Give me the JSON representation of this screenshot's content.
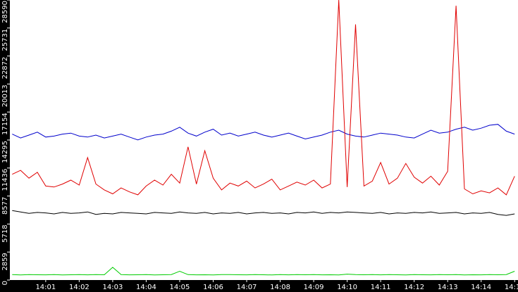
{
  "chart_data": {
    "type": "line",
    "x": [
      0,
      0.25,
      0.5,
      0.75,
      1,
      1.25,
      1.5,
      1.75,
      2,
      2.25,
      2.5,
      2.75,
      3,
      3.25,
      3.5,
      3.75,
      4,
      4.25,
      4.5,
      4.75,
      5,
      5.25,
      5.5,
      5.75,
      6,
      6.25,
      6.5,
      6.75,
      7,
      7.25,
      7.5,
      7.75,
      8,
      8.25,
      8.5,
      8.75,
      9,
      9.25,
      9.5,
      9.75,
      10,
      10.25,
      10.5,
      10.75,
      11,
      11.25,
      11.5,
      11.75,
      12,
      12.25,
      12.5,
      12.75,
      13,
      13.25,
      13.5,
      13.75,
      14,
      14.25,
      14.5,
      14.75,
      15
    ],
    "xlim": [
      -0.07,
      15.1
    ],
    "xticks": [
      {
        "value": 1,
        "label": "14:01"
      },
      {
        "value": 2,
        "label": "14:02"
      },
      {
        "value": 3,
        "label": "14:03"
      },
      {
        "value": 4,
        "label": "14:04"
      },
      {
        "value": 5,
        "label": "14:05"
      },
      {
        "value": 6,
        "label": "14:06"
      },
      {
        "value": 7,
        "label": "14:07"
      },
      {
        "value": 8,
        "label": "14:08"
      },
      {
        "value": 9,
        "label": "14:09"
      },
      {
        "value": 10,
        "label": "14:10"
      },
      {
        "value": 11,
        "label": "14:11"
      },
      {
        "value": 12,
        "label": "14:12"
      },
      {
        "value": 13,
        "label": "14:13"
      },
      {
        "value": 14,
        "label": "14:14"
      },
      {
        "value": 15,
        "label": "14:15"
      }
    ],
    "ylim": [
      0,
      28590
    ],
    "yticks": [
      0,
      2859,
      5718,
      8577,
      11436,
      14295,
      17154,
      20013,
      22872,
      25731,
      28590
    ],
    "series": [
      {
        "color": "#0000cc",
        "values": [
          14900,
          14500,
          14800,
          15100,
          14600,
          14700,
          14900,
          15000,
          14700,
          14600,
          14800,
          14500,
          14700,
          14900,
          14600,
          14300,
          14600,
          14800,
          14900,
          15200,
          15600,
          15000,
          14700,
          15100,
          15400,
          14800,
          15000,
          14700,
          14900,
          15100,
          14800,
          14600,
          14800,
          15000,
          14700,
          14400,
          14600,
          14800,
          15100,
          15300,
          14900,
          14700,
          14600,
          14800,
          15000,
          14900,
          14800,
          14600,
          14500,
          14900,
          15300,
          15000,
          15100,
          15400,
          15600,
          15300,
          15500,
          15800,
          15900,
          15200,
          14900
        ]
      },
      {
        "color": "#e00000",
        "values": [
          10800,
          11200,
          10400,
          11000,
          9600,
          9500,
          9800,
          10200,
          9700,
          12500,
          9800,
          9200,
          8800,
          9400,
          9000,
          8700,
          9600,
          10200,
          9700,
          10800,
          9900,
          13600,
          9800,
          13200,
          10400,
          9200,
          9900,
          9600,
          10100,
          9400,
          9800,
          10300,
          9200,
          9600,
          10000,
          9700,
          10200,
          9400,
          9800,
          28590,
          9500,
          26100,
          9600,
          10100,
          12000,
          9800,
          10400,
          11900,
          10500,
          9900,
          10600,
          9700,
          11100,
          28000,
          9300,
          8800,
          9100,
          8900,
          9400,
          8700,
          10600
        ]
      },
      {
        "color": "#000000",
        "values": [
          7100,
          6950,
          6800,
          6900,
          6850,
          6750,
          6900,
          6800,
          6850,
          6950,
          6700,
          6800,
          6750,
          6900,
          6850,
          6800,
          6750,
          6900,
          6850,
          6800,
          6950,
          6850,
          6800,
          6900,
          6750,
          6850,
          6800,
          6900,
          6750,
          6850,
          6900,
          6800,
          6850,
          6750,
          6900,
          6850,
          6950,
          6800,
          6900,
          6850,
          6950,
          6900,
          6850,
          6800,
          6900,
          6750,
          6850,
          6800,
          6900,
          6850,
          6950,
          6800,
          6850,
          6900,
          6750,
          6850,
          6800,
          6900,
          6700,
          6600,
          6750
        ]
      },
      {
        "color": "#00cc00",
        "values": [
          550,
          520,
          560,
          540,
          530,
          550,
          520,
          540,
          560,
          530,
          550,
          540,
          1300,
          560,
          530,
          540,
          550,
          520,
          540,
          560,
          900,
          550,
          530,
          540,
          520,
          550,
          560,
          540,
          530,
          550,
          540,
          520,
          550,
          530,
          560,
          540,
          550,
          530,
          540,
          520,
          600,
          550,
          540,
          560,
          530,
          550,
          540,
          520,
          550,
          540,
          530,
          560,
          540,
          550,
          520,
          540,
          530,
          550,
          540,
          560,
          900
        ]
      }
    ]
  }
}
